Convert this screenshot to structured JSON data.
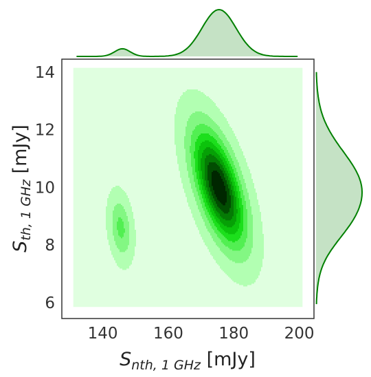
{
  "chart_data": {
    "type": "kde_jointplot",
    "xlabel_main": "S",
    "xlabel_sub": "nth, 1 GHz",
    "xlabel_unit": " [mJy]",
    "ylabel_main": "S",
    "ylabel_sub": "th, 1 GHz",
    "ylabel_unit": " [mJy]",
    "xlim": [
      127.5,
      204.5
    ],
    "ylim": [
      5.45,
      14.45
    ],
    "x_ticks": [
      "140",
      "160",
      "180",
      "200"
    ],
    "y_ticks": [
      "6",
      "8",
      "10",
      "12",
      "14"
    ],
    "grid": false,
    "colors": {
      "bg_fill": "#e0ffe0",
      "levels": [
        "#b2ffb2",
        "#83f783",
        "#52ef52",
        "#1cdf1c",
        "#0cc30c",
        "#06a006",
        "#057a05",
        "#024d02",
        "#002700"
      ],
      "marginal_line": "#008000",
      "marginal_fill": "#c5e2c5"
    },
    "components": [
      {
        "mean": [
          145.5,
          8.6
        ],
        "sd": [
          2.2,
          0.7
        ],
        "rho": -0.25,
        "weight": 0.07
      },
      {
        "mean": [
          175.5,
          10.0
        ],
        "sd": [
          5.2,
          1.3
        ],
        "rho": -0.6,
        "weight": 0.93
      }
    ],
    "contour_extent": {
      "x": [
        131,
        201
      ],
      "y": [
        5.85,
        14.15
      ]
    }
  }
}
